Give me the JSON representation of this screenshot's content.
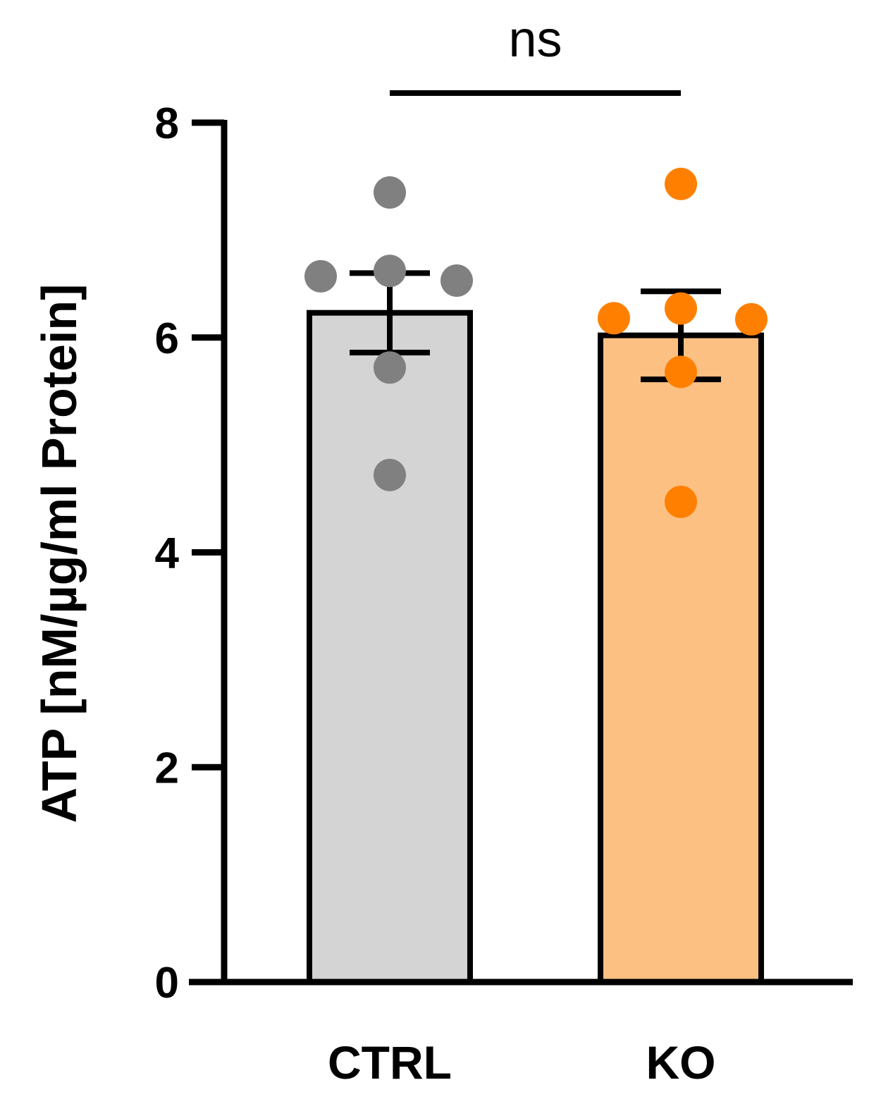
{
  "chart_data": {
    "type": "bar",
    "title": "",
    "xlabel": "",
    "ylabel": "ATP [nM/µg/ml Protein]",
    "ylim": [
      0,
      8
    ],
    "yticks": [
      0,
      2,
      4,
      6,
      8
    ],
    "ytick_labels": [
      "0",
      "2",
      "4",
      "6",
      "8"
    ],
    "categories": [
      "CTRL",
      "KO"
    ],
    "values": [
      6.23,
      6.02
    ],
    "error": [
      0.37,
      0.41
    ],
    "error_type": "SEM",
    "points": [
      [
        7.35,
        6.62,
        6.57,
        6.53,
        5.72,
        4.72
      ],
      [
        7.43,
        6.27,
        6.18,
        6.17,
        5.68,
        4.47
      ]
    ],
    "colors": {
      "bar_fill": [
        "#d4d4d4",
        "#fdc083"
      ],
      "points": [
        "#808080",
        "#ff8000"
      ],
      "stroke": "#000000"
    },
    "significance": {
      "label": "ns",
      "between": [
        "CTRL",
        "KO"
      ]
    },
    "grid": false,
    "legend": "none"
  }
}
